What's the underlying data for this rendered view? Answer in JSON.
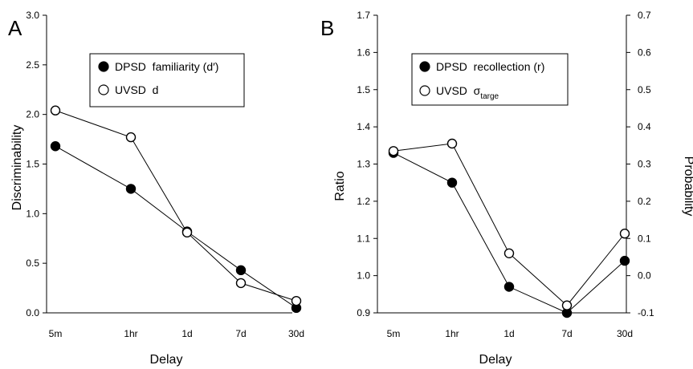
{
  "chart_data": [
    {
      "type": "line",
      "panel_label": "A",
      "xlabel": "Delay",
      "ylabel": "Discriminability",
      "categories": [
        "5m",
        "1hr",
        "1d",
        "7d",
        "30d"
      ],
      "ylim": [
        0,
        3.0
      ],
      "yticks": [
        "0.0",
        "0.5",
        "1.0",
        "1.5",
        "2.0",
        "2.5",
        "3.0"
      ],
      "legend_position": "upper-center",
      "series": [
        {
          "name": "DPSD  familiarity (d′)",
          "marker": "filled",
          "values": [
            1.68,
            1.25,
            0.82,
            0.43,
            0.05
          ]
        },
        {
          "name": "UVSD  d",
          "marker": "open",
          "values": [
            2.04,
            1.77,
            0.81,
            0.3,
            0.12
          ]
        }
      ]
    },
    {
      "type": "line",
      "panel_label": "B",
      "xlabel": "Delay",
      "ylabel": "Ratio",
      "ylabel_right": "Probability",
      "categories": [
        "5m",
        "1hr",
        "1d",
        "7d",
        "30d"
      ],
      "ylim": [
        0.9,
        1.7
      ],
      "yticks": [
        "0.9",
        "1.0",
        "1.1",
        "1.2",
        "1.3",
        "1.4",
        "1.5",
        "1.6",
        "1.7"
      ],
      "ylim_right": [
        -0.1,
        0.7
      ],
      "yticks_right": [
        "-0.1",
        "0.0",
        "0.1",
        "0.2",
        "0.3",
        "0.4",
        "0.5",
        "0.6",
        "0.7"
      ],
      "legend_position": "upper-center",
      "series": [
        {
          "name": "DPSD  recollection (r)",
          "marker": "filled",
          "axis": "right",
          "values": [
            0.33,
            0.25,
            -0.03,
            -0.1,
            0.04
          ]
        },
        {
          "name": "UVSD  σ",
          "name_subscript": "targe",
          "marker": "open",
          "axis": "left",
          "values": [
            1.335,
            1.355,
            1.06,
            0.92,
            1.113
          ]
        }
      ]
    }
  ]
}
